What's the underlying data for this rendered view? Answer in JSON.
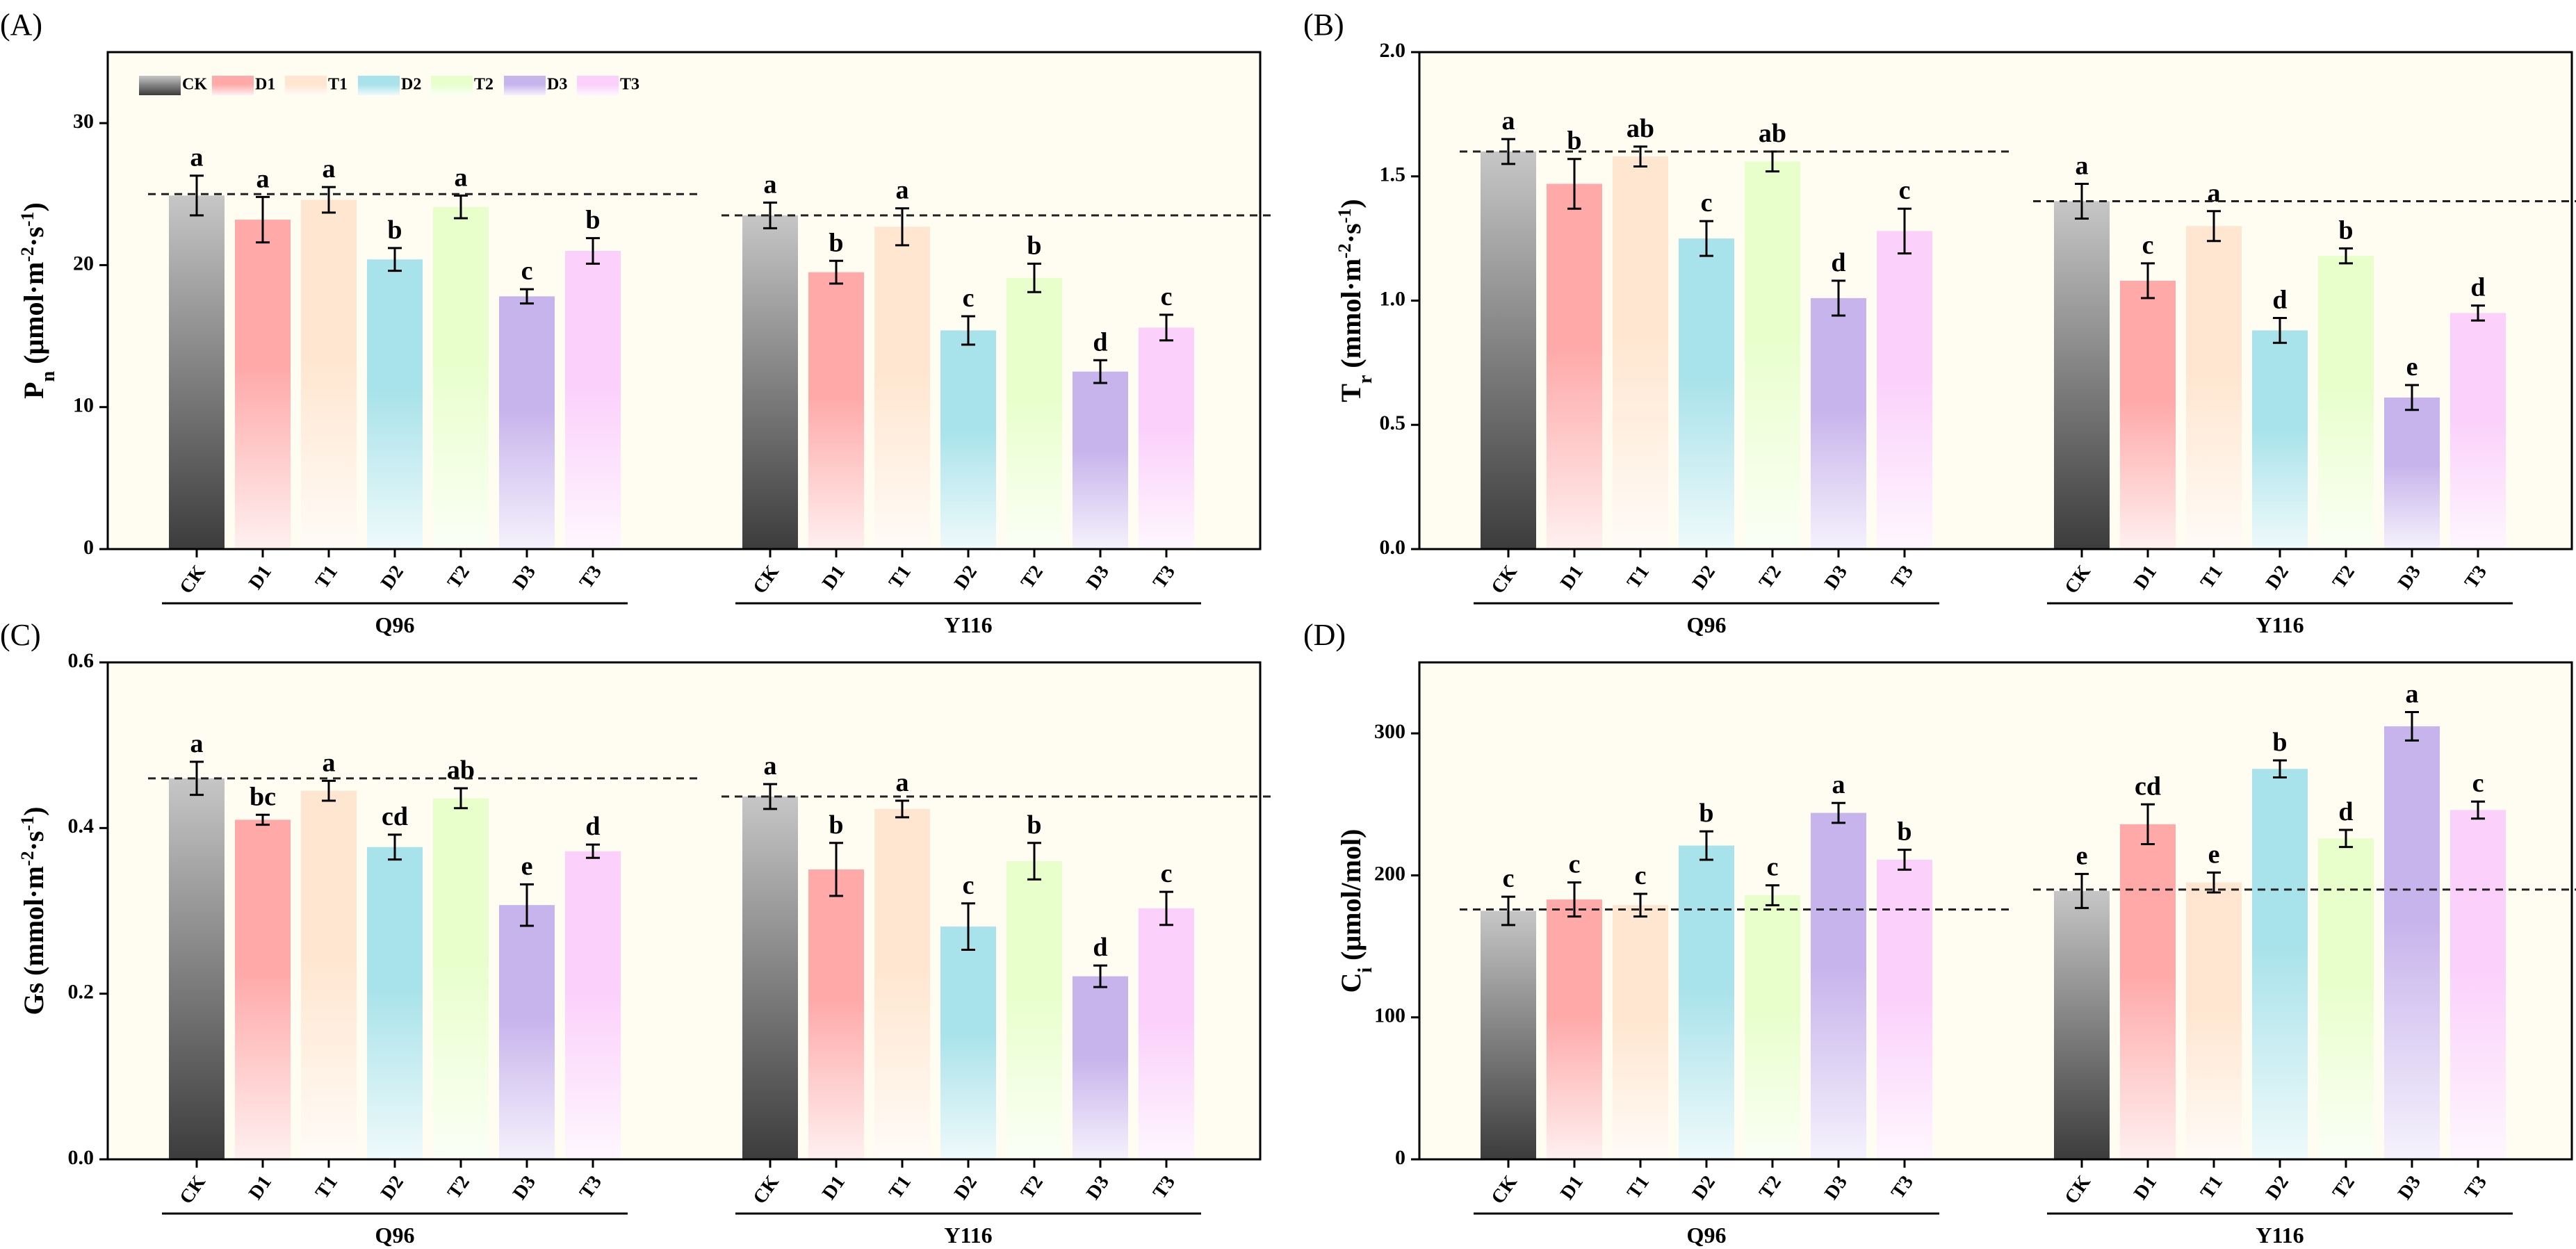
{
  "legend": {
    "entries": [
      "CK",
      "D1",
      "T1",
      "D2",
      "T2",
      "D3",
      "T3"
    ]
  },
  "colors": {
    "CK": "#444444",
    "D1": "#ffa9a9",
    "T1": "#ffe6d0",
    "D2": "#a8e2ea",
    "T2": "#e8ffcc",
    "D3": "#c8b4ec",
    "T3": "#fbd0fb"
  },
  "chart_data": [
    {
      "type": "bar",
      "panel": "(A)",
      "ylabel_main": "P",
      "ylabel_sub": "n",
      "ylabel_units": [
        " (μmol·m",
        "-2",
        "·s",
        "-1",
        ")"
      ],
      "ylim": [
        0,
        35
      ],
      "yticks": [
        0,
        10,
        20,
        30
      ],
      "ytick_labels": [
        "0",
        "10",
        "20",
        "30"
      ],
      "categories": [
        "CK",
        "D1",
        "T1",
        "D2",
        "T2",
        "D3",
        "T3"
      ],
      "groups": [
        {
          "name": "Q96",
          "values": [
            24.9,
            23.2,
            24.6,
            20.4,
            24.1,
            17.8,
            21.0
          ],
          "errors": [
            1.4,
            1.6,
            0.9,
            0.8,
            0.8,
            0.5,
            0.9
          ],
          "letters": [
            "a",
            "a",
            "a",
            "b",
            "a",
            "c",
            "b"
          ],
          "ref": 25.0
        },
        {
          "name": "Y116",
          "values": [
            23.5,
            19.5,
            22.7,
            15.4,
            19.1,
            12.5,
            15.6
          ],
          "errors": [
            0.9,
            0.8,
            1.3,
            1.0,
            1.0,
            0.8,
            0.9
          ],
          "letters": [
            "a",
            "b",
            "a",
            "c",
            "b",
            "d",
            "c"
          ],
          "ref": 23.5
        }
      ],
      "show_legend": true
    },
    {
      "type": "bar",
      "panel": "(B)",
      "ylabel_main": "T",
      "ylabel_sub": "r",
      "ylabel_units": [
        " (mmol·m",
        "-2",
        "·s",
        "-1",
        ")"
      ],
      "ylim": [
        0,
        2.0
      ],
      "yticks": [
        0,
        0.5,
        1.0,
        1.5,
        2.0
      ],
      "ytick_labels": [
        "0.0",
        "0.5",
        "1.0",
        "1.5",
        "2.0"
      ],
      "categories": [
        "CK",
        "D1",
        "T1",
        "D2",
        "T2",
        "D3",
        "T3"
      ],
      "groups": [
        {
          "name": "Q96",
          "values": [
            1.6,
            1.47,
            1.58,
            1.25,
            1.56,
            1.01,
            1.28
          ],
          "errors": [
            0.05,
            0.1,
            0.04,
            0.07,
            0.04,
            0.07,
            0.09
          ],
          "letters": [
            "a",
            "b",
            "ab",
            "c",
            "ab",
            "d",
            "c"
          ],
          "ref": 1.6
        },
        {
          "name": "Y116",
          "values": [
            1.4,
            1.08,
            1.3,
            0.88,
            1.18,
            0.61,
            0.95
          ],
          "errors": [
            0.07,
            0.07,
            0.06,
            0.05,
            0.03,
            0.05,
            0.03
          ],
          "letters": [
            "a",
            "c",
            "a",
            "d",
            "b",
            "e",
            "d"
          ],
          "ref": 1.4
        }
      ],
      "show_legend": false
    },
    {
      "type": "bar",
      "panel": "(C)",
      "ylabel_main": "Gs",
      "ylabel_sub": "",
      "ylabel_units": [
        " (mmol·m",
        "-2",
        "·s",
        "-1",
        ")"
      ],
      "ylim": [
        0,
        0.6
      ],
      "yticks": [
        0,
        0.2,
        0.4,
        0.6
      ],
      "ytick_labels": [
        "0.0",
        "0.2",
        "0.4",
        "0.6"
      ],
      "categories": [
        "CK",
        "D1",
        "T1",
        "D2",
        "T2",
        "D3",
        "T3"
      ],
      "groups": [
        {
          "name": "Q96",
          "values": [
            0.46,
            0.41,
            0.445,
            0.377,
            0.436,
            0.307,
            0.372
          ],
          "errors": [
            0.02,
            0.006,
            0.012,
            0.015,
            0.012,
            0.025,
            0.008
          ],
          "letters": [
            "a",
            "bc",
            "a",
            "cd",
            "ab",
            "e",
            "d"
          ],
          "ref": 0.46
        },
        {
          "name": "Y116",
          "values": [
            0.438,
            0.35,
            0.423,
            0.281,
            0.36,
            0.221,
            0.303
          ],
          "errors": [
            0.015,
            0.032,
            0.01,
            0.028,
            0.022,
            0.013,
            0.02
          ],
          "letters": [
            "a",
            "b",
            "a",
            "c",
            "b",
            "d",
            "c"
          ],
          "ref": 0.438
        }
      ],
      "show_legend": false
    },
    {
      "type": "bar",
      "panel": "(D)",
      "ylabel_main": "C",
      "ylabel_sub": "i",
      "ylabel_units": [
        " (μmol/mol)"
      ],
      "ylim": [
        0,
        350
      ],
      "yticks": [
        0,
        100,
        200,
        300
      ],
      "ytick_labels": [
        "0",
        "100",
        "200",
        "300"
      ],
      "categories": [
        "CK",
        "D1",
        "T1",
        "D2",
        "T2",
        "D3",
        "T3"
      ],
      "groups": [
        {
          "name": "Q96",
          "values": [
            175,
            183,
            179,
            221,
            186,
            244,
            211
          ],
          "errors": [
            10,
            12,
            8,
            10,
            7,
            7,
            7
          ],
          "letters": [
            "c",
            "c",
            "c",
            "b",
            "c",
            "a",
            "b"
          ],
          "ref": 176
        },
        {
          "name": "Y116",
          "values": [
            189,
            236,
            195,
            275,
            226,
            305,
            246
          ],
          "errors": [
            12,
            14,
            7,
            6,
            6,
            10,
            6
          ],
          "letters": [
            "e",
            "cd",
            "e",
            "b",
            "d",
            "a",
            "c"
          ],
          "ref": 190
        }
      ],
      "show_legend": false
    }
  ]
}
